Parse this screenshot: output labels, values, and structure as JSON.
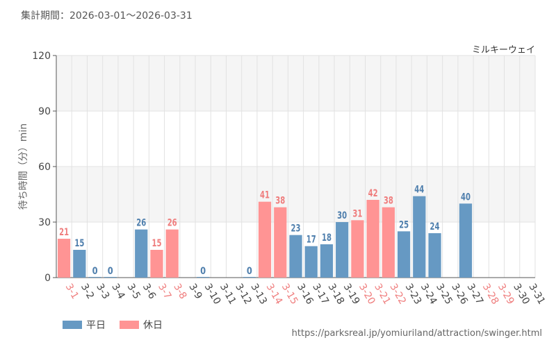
{
  "header": {
    "period": "集計期間：2026-03-01～2026-03-31"
  },
  "chart_data": {
    "type": "bar",
    "title": "ミルキーウェイ",
    "ylabel": "待ち時間（分）min",
    "xlabel": "",
    "ylim": [
      0,
      120
    ],
    "yticks": [
      0,
      30,
      60,
      90,
      120
    ],
    "categories": [
      "3-1",
      "3-2",
      "3-3",
      "3-4",
      "3-5",
      "3-6",
      "3-7",
      "3-8",
      "3-9",
      "3-10",
      "3-11",
      "3-12",
      "3-13",
      "3-14",
      "3-15",
      "3-16",
      "3-17",
      "3-18",
      "3-19",
      "3-20",
      "3-21",
      "3-22",
      "3-23",
      "3-24",
      "3-25",
      "3-26",
      "3-27",
      "3-28",
      "3-29",
      "3-30",
      "3-31"
    ],
    "values": [
      21,
      15,
      0,
      0,
      null,
      26,
      15,
      26,
      null,
      0,
      null,
      null,
      0,
      41,
      38,
      23,
      17,
      18,
      30,
      31,
      42,
      38,
      25,
      44,
      24,
      null,
      40,
      null,
      null,
      null,
      null
    ],
    "day_types": [
      "holiday",
      "weekday",
      "weekday",
      "weekday",
      "weekday",
      "weekday",
      "holiday",
      "holiday",
      "weekday",
      "weekday",
      "weekday",
      "weekday",
      "weekday",
      "holiday",
      "holiday",
      "weekday",
      "weekday",
      "weekday",
      "weekday",
      "holiday",
      "holiday",
      "holiday",
      "weekday",
      "weekday",
      "weekday",
      "weekday",
      "weekday",
      "holiday",
      "holiday",
      "weekday",
      "weekday"
    ],
    "legend": [
      {
        "key": "weekday",
        "label": "平日",
        "color": "#6699c3"
      },
      {
        "key": "holiday",
        "label": "休日",
        "color": "#ff9494"
      }
    ],
    "colors": {
      "weekday_label": "#4f7fad",
      "holiday_label": "#ef7d7d",
      "axis_text": "#444444",
      "grid": "#e2e2e2",
      "band": "#f5f5f5"
    },
    "grid": true
  },
  "footer": {
    "source": "https://parksreal.jp/yomiuriland/attraction/swinger.html"
  }
}
